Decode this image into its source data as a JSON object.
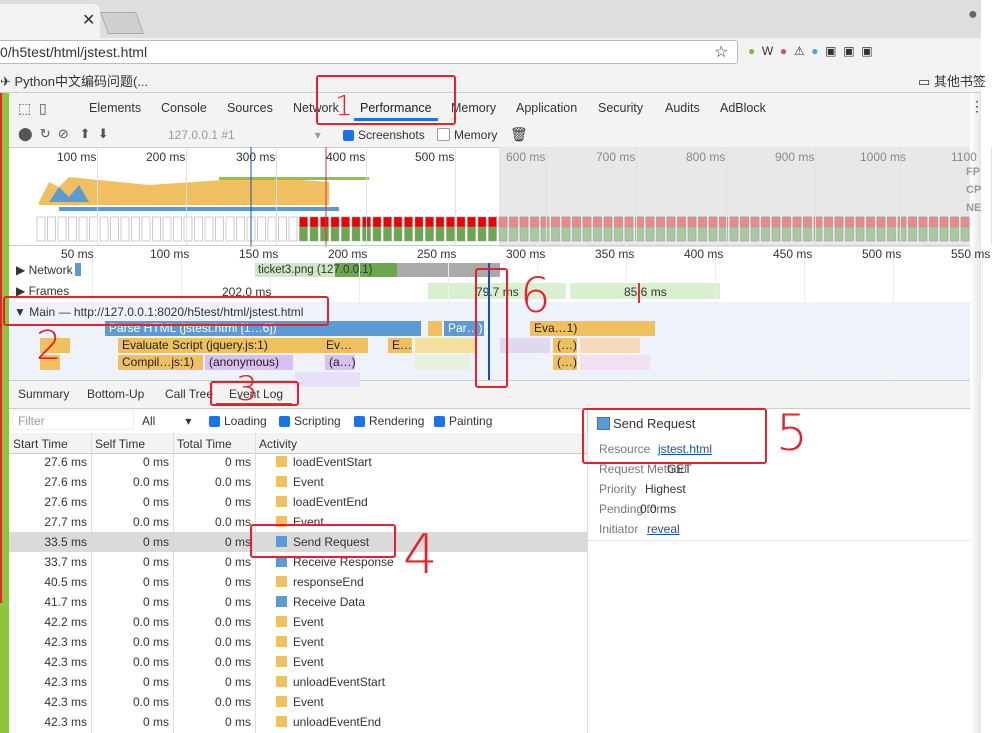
{
  "browser": {
    "url": "0/h5test/html/jstest.html",
    "bookmark": "Python中文编码问题(...",
    "other_bookmarks": "其他书签"
  },
  "devtools": {
    "tabs": [
      "Elements",
      "Console",
      "Sources",
      "Network",
      "Performance",
      "Memory",
      "Application",
      "Security",
      "Audits",
      "AdBlock"
    ],
    "toolbar": {
      "target": "127.0.0.1 #1",
      "screenshots": "Screenshots",
      "memory": "Memory"
    },
    "overview_ticks": [
      "100 ms",
      "200 ms",
      "300 ms",
      "400 ms",
      "500 ms",
      "600 ms",
      "700 ms",
      "800 ms",
      "900 ms",
      "1000 ms",
      "1100"
    ],
    "overview_lanes": [
      "FP",
      "CP",
      "NE"
    ],
    "timeline_ticks": [
      "50 ms",
      "100 ms",
      "150 ms",
      "200 ms",
      "250 ms",
      "300 ms",
      "350 ms",
      "400 ms",
      "450 ms",
      "500 ms",
      "550 ms"
    ],
    "tracks": {
      "network": "Network",
      "network_item": "ticket3.png (127.0.0.1)",
      "frames": "Frames",
      "frame_times": [
        "202.0 ms",
        "79.7 ms",
        "85.6 ms"
      ],
      "main": "Main — http://127.0.0.1:8020/h5test/html/jstest.html"
    },
    "flame": [
      "Parse HTML (jstest.html [1…6])",
      "Evaluate Script (jquery.js:1)",
      "Compil…js:1)",
      "(anonymous)",
      "Par…)",
      "Eva…1)",
      "Ev…",
      "E…",
      "(a…)",
      "(…)",
      "(…)"
    ],
    "bottom_tabs": [
      "Summary",
      "Bottom-Up",
      "Call Tree",
      "Event Log"
    ],
    "filter": {
      "placeholder": "Filter",
      "level": "All",
      "categories": [
        "Loading",
        "Scripting",
        "Rendering",
        "Painting"
      ]
    },
    "table": {
      "columns": [
        "Start Time",
        "Self Time",
        "Total Time",
        "Activity"
      ],
      "selected_row": 4,
      "rows": [
        [
          "27.6 ms",
          "0 ms",
          "0 ms",
          "loadEventStart",
          "#f0c060"
        ],
        [
          "27.6 ms",
          "0.0 ms",
          "0.0 ms",
          "Event",
          "#f0c060"
        ],
        [
          "27.6 ms",
          "0 ms",
          "0 ms",
          "loadEventEnd",
          "#f0c060"
        ],
        [
          "27.7 ms",
          "0.0 ms",
          "0.0 ms",
          "Event",
          "#f0c060"
        ],
        [
          "33.5 ms",
          "0 ms",
          "0 ms",
          "Send Request",
          "#5b9bd5"
        ],
        [
          "33.7 ms",
          "0 ms",
          "0 ms",
          "Receive Response",
          "#5b9bd5"
        ],
        [
          "40.5 ms",
          "0 ms",
          "0 ms",
          "responseEnd",
          "#f0c060"
        ],
        [
          "41.7 ms",
          "0 ms",
          "0 ms",
          "Receive Data",
          "#5b9bd5"
        ],
        [
          "42.2 ms",
          "0.0 ms",
          "0.0 ms",
          "Event",
          "#f0c060"
        ],
        [
          "42.3 ms",
          "0.0 ms",
          "0.0 ms",
          "Event",
          "#f0c060"
        ],
        [
          "42.3 ms",
          "0.0 ms",
          "0.0 ms",
          "Event",
          "#f0c060"
        ],
        [
          "42.3 ms",
          "0 ms",
          "0 ms",
          "unloadEventStart",
          "#f0c060"
        ],
        [
          "42.3 ms",
          "0.0 ms",
          "0.0 ms",
          "Event",
          "#f0c060"
        ],
        [
          "42.3 ms",
          "0 ms",
          "0 ms",
          "unloadEventEnd",
          "#f0c060"
        ]
      ]
    },
    "details": {
      "title": "Send Request",
      "fields": [
        [
          "Resource",
          "jstest.html"
        ],
        [
          "Request Method",
          "GET"
        ],
        [
          "Priority",
          "Highest"
        ],
        [
          "Pending for",
          "0.0 ms"
        ],
        [
          "Initiator",
          "reveal"
        ]
      ]
    }
  },
  "annotations": [
    "1",
    "2",
    "3",
    "4",
    "5",
    "6"
  ]
}
